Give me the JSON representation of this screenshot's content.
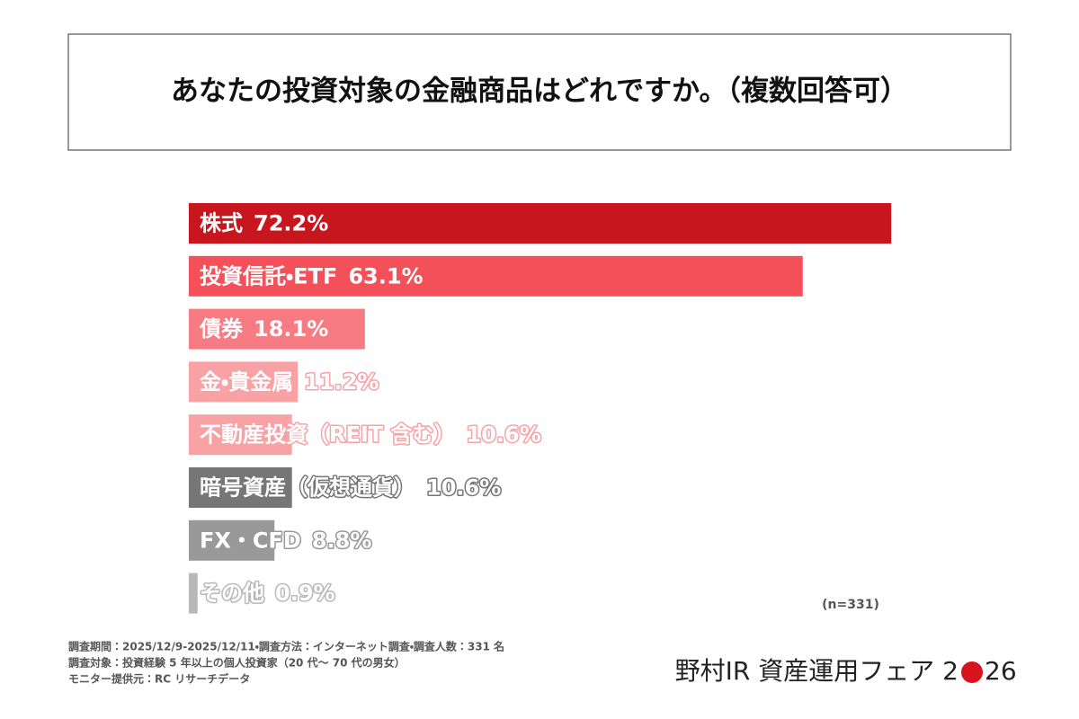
{
  "chart_data": {
    "type": "bar",
    "orientation": "horizontal",
    "title": "あなたの投資対象の金融商品はどれですか。（複数回答可）",
    "categories": [
      "株式",
      "投資信託・ETF",
      "債券",
      "金・貴金属",
      "不動産投資（REIT 含む）",
      "暗号資産（仮想通貨）",
      "FX・CFD",
      "その他"
    ],
    "values": [
      72.2,
      63.1,
      18.1,
      11.2,
      10.6,
      10.6,
      8.8,
      0.9
    ],
    "value_labels": [
      "72.2%",
      "63.1%",
      "18.1%",
      "11.2%",
      "10.6%",
      "10.6%",
      "8.8%",
      "0.9%"
    ],
    "colors": [
      "#c8161e",
      "#f4505a",
      "#f67b82",
      "#f8a2a6",
      "#f8a2a6",
      "#767676",
      "#999999",
      "#b8b8b8"
    ],
    "sample_note": "(n=331)",
    "notes": [
      "調査期間：2025/12/9-2025/12/11・調査方法：インターネット調査・調査人数：331 名",
      "調査対象：投資経験 5 年以上の個人投資家（20 代～ 70 代の男女）",
      "モニター提供元：RC リサーチデータ"
    ],
    "logo_prefix": "野村IR 資産運用フェア 2",
    "logo_suffix": "26"
  }
}
